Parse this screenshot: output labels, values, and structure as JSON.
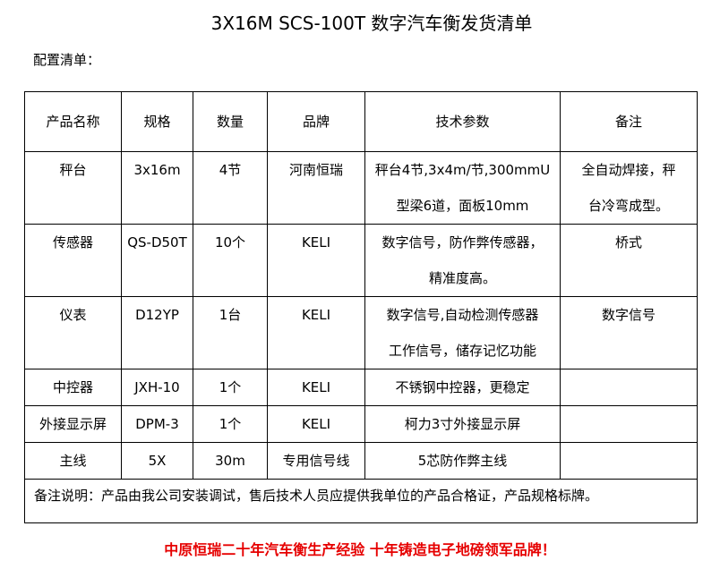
{
  "title": "3X16M SCS-100T 数字汽车衡发货清单",
  "subtitle": "配置清单：",
  "table": {
    "headers": [
      "产品名称",
      "规格",
      "数量",
      "品牌",
      "技术参数",
      "备注"
    ],
    "rows": [
      {
        "name": "秤台",
        "spec": "3x16m",
        "qty": "4节",
        "brand": "河南恒瑞",
        "tech": [
          "秤台4节,3x4m/节,300mmU",
          "型梁6道，面板10mm"
        ],
        "remark": [
          "全自动焊接，秤",
          "台冷弯成型。"
        ]
      },
      {
        "name": "传感器",
        "spec": "QS-D50T",
        "qty": "10个",
        "brand": "KELI",
        "tech": [
          "数字信号，防作弊传感器，",
          "精准度高。"
        ],
        "remark": [
          "桥式"
        ]
      },
      {
        "name": "仪表",
        "spec": "D12YP",
        "qty": "1台",
        "brand": "KELI",
        "tech": [
          "数字信号,自动检测传感器",
          "工作信号，储存记忆功能"
        ],
        "remark": [
          "数字信号"
        ]
      },
      {
        "name": "中控器",
        "spec": "JXH-10",
        "qty": "1个",
        "brand": "KELI",
        "tech": [
          "不锈钢中控器，更稳定"
        ],
        "remark": [
          ""
        ]
      },
      {
        "name": "外接显示屏",
        "spec": "DPM-3",
        "qty": "1个",
        "brand": "KELI",
        "tech": [
          "柯力3寸外接显示屏"
        ],
        "remark": [
          ""
        ]
      },
      {
        "name": "主线",
        "spec": "5X",
        "qty": "30m",
        "brand": "专用信号线",
        "tech": [
          "5芯防作弊主线"
        ],
        "remark": [
          ""
        ]
      }
    ],
    "note": "备注说明：产品由我公司安装调试，售后技术人员应提供我单位的产品合格证，产品规格标牌。"
  },
  "footer": "中原恒瑞二十年汽车衡生产经验 十年铸造电子地磅领军品牌！",
  "colors": {
    "footer": "#e60000"
  }
}
